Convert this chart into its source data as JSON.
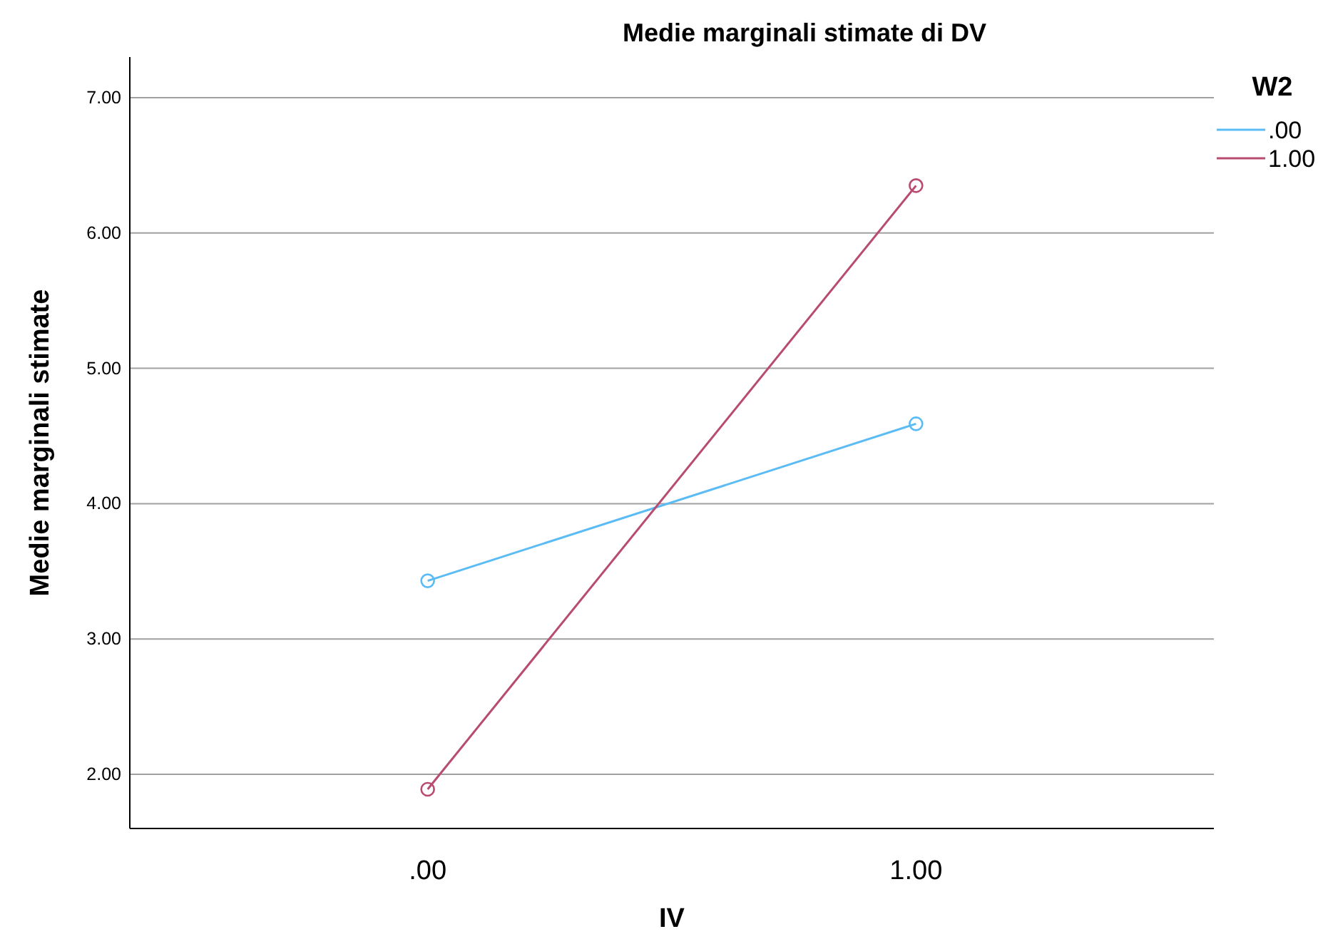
{
  "chart_data": {
    "type": "line",
    "title": "Medie marginali stimate di DV",
    "xlabel": "IV",
    "ylabel": "Medie marginali stimate",
    "legend_title": "W2",
    "x": [
      0,
      1
    ],
    "xlim": [
      -0.61,
      1.61
    ],
    "xticks": [
      {
        "value": 0,
        "label": ".00"
      },
      {
        "value": 1,
        "label": "1.00"
      }
    ],
    "series": [
      {
        "name": ".00",
        "color": "#5bbcf5",
        "values": [
          3.43,
          4.59
        ]
      },
      {
        "name": "1.00",
        "color": "#b84b70",
        "values": [
          1.89,
          6.35
        ]
      }
    ],
    "ylim": [
      1.6,
      7.3
    ],
    "yticks": [
      {
        "value": 2,
        "label": "2.00"
      },
      {
        "value": 3,
        "label": "3.00"
      },
      {
        "value": 4,
        "label": "4.00"
      },
      {
        "value": 5,
        "label": "5.00"
      },
      {
        "value": 6,
        "label": "6.00"
      },
      {
        "value": 7,
        "label": "7.00"
      }
    ],
    "grid": "y",
    "legend": "top right",
    "marker": "circle",
    "line_style": "solid"
  }
}
